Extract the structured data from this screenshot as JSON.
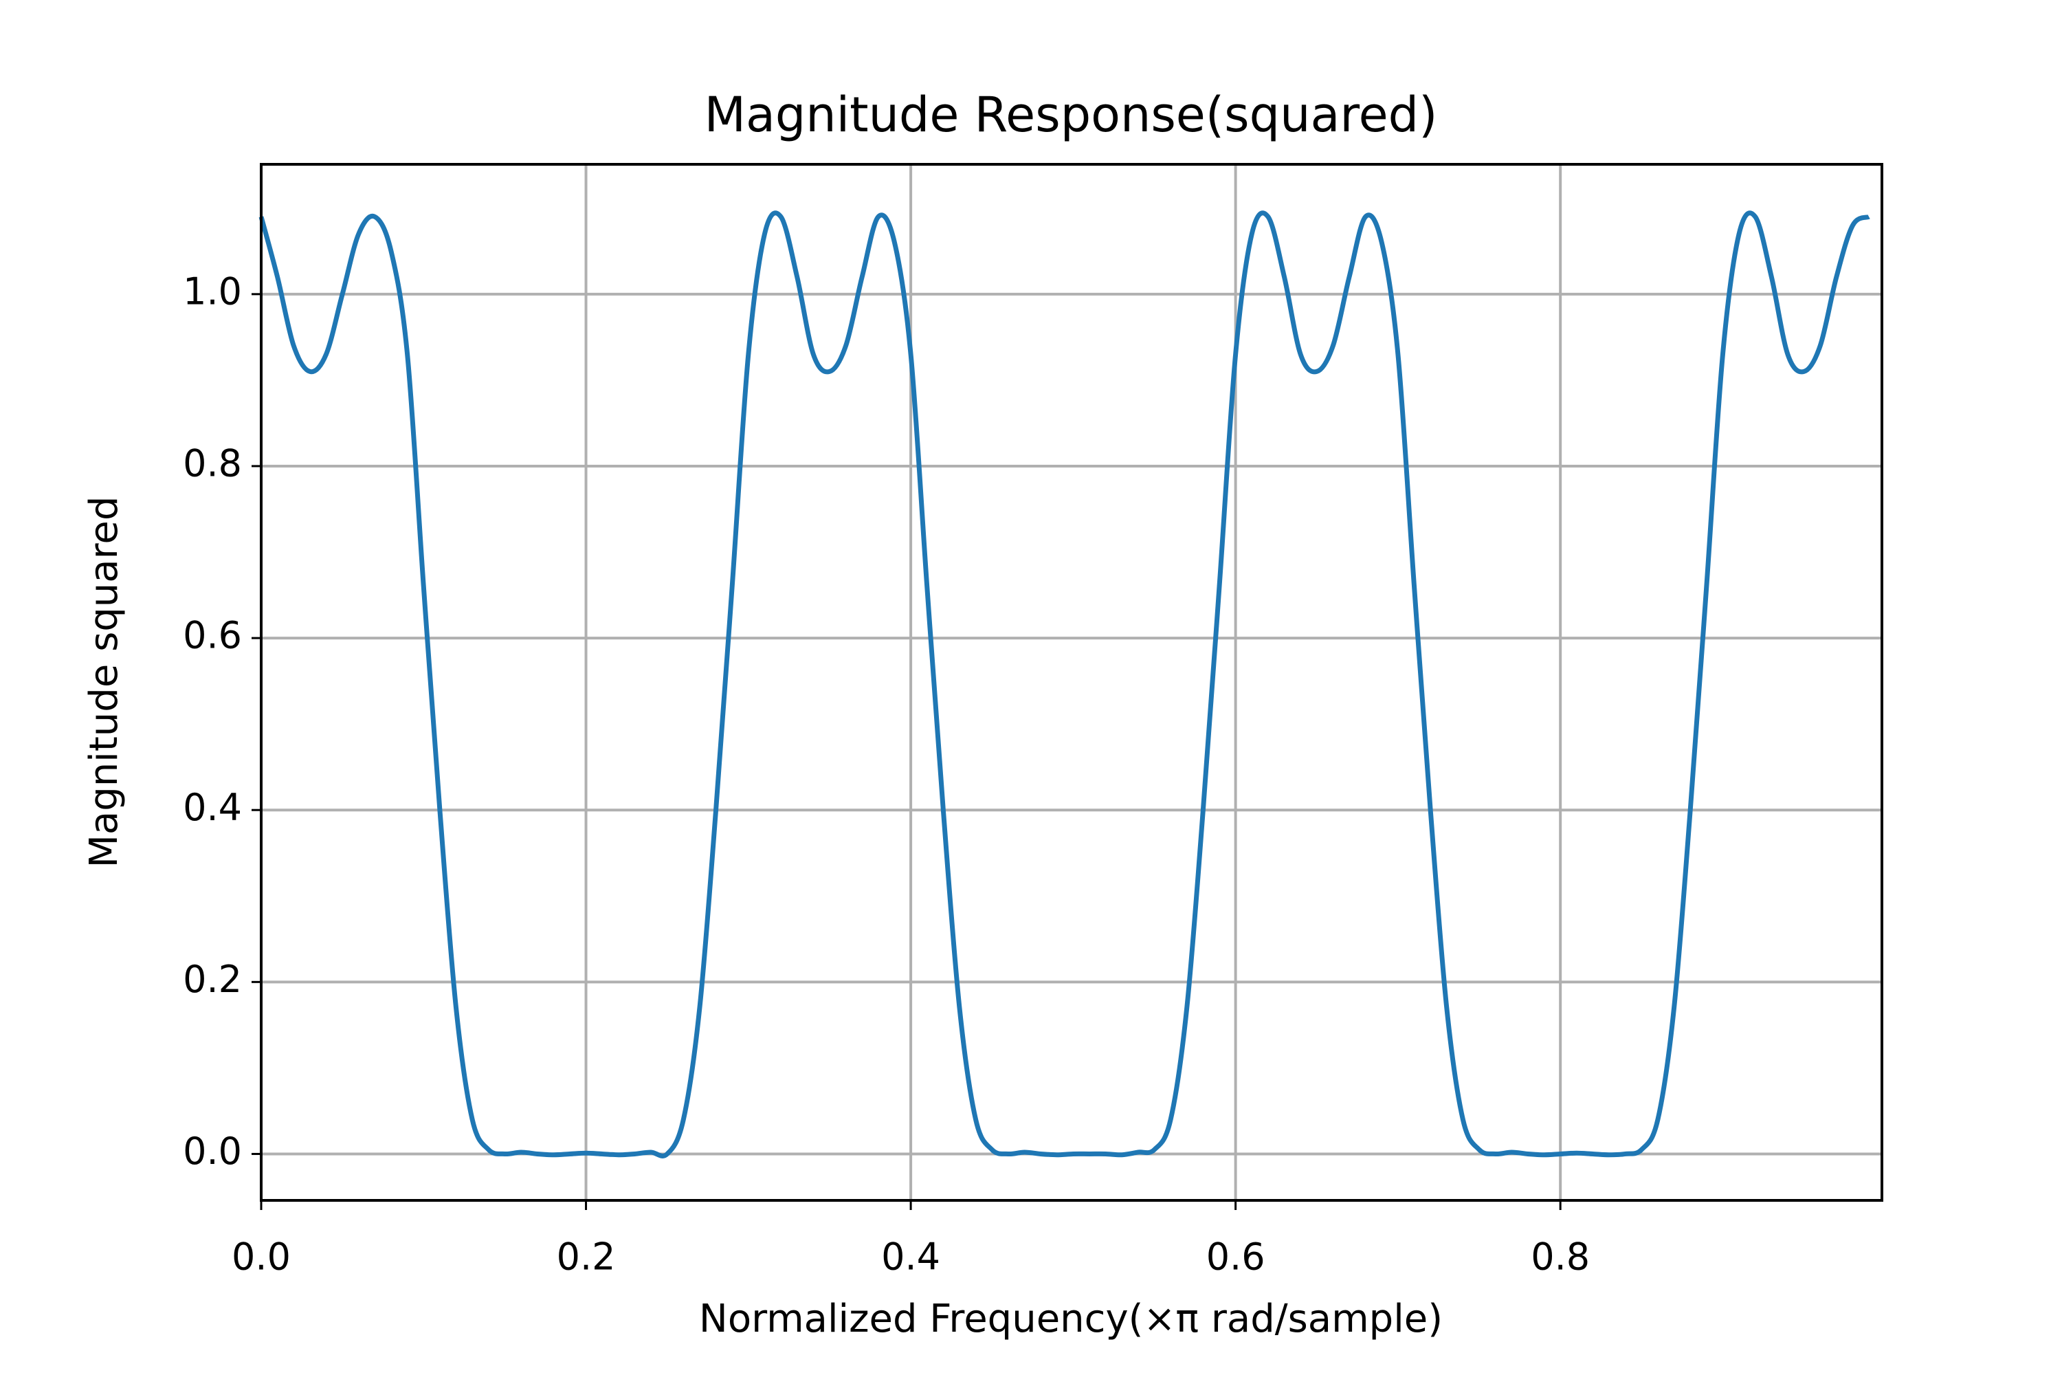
{
  "chart_data": {
    "type": "line",
    "title": "Magnitude Response(squared)",
    "xlabel": "Normalized Frequency(×π rad/sample)",
    "ylabel": "Magnitude squared",
    "x": [
      0,
      0.01,
      0.02,
      0.03,
      0.04,
      0.05,
      0.06,
      0.07,
      0.08,
      0.09,
      0.1,
      0.11,
      0.12,
      0.13,
      0.14,
      0.15,
      0.16,
      0.17,
      0.18,
      0.19,
      0.2,
      0.21,
      0.22,
      0.23,
      0.24,
      0.25,
      0.26,
      0.27,
      0.28,
      0.29,
      0.3,
      0.31,
      0.32,
      0.33,
      0.34,
      0.35,
      0.36,
      0.37,
      0.38,
      0.39,
      0.4,
      0.41,
      0.42,
      0.43,
      0.44,
      0.45,
      0.46,
      0.47,
      0.48,
      0.49,
      0.5,
      0.51,
      0.52,
      0.53,
      0.54,
      0.55,
      0.56,
      0.57,
      0.58,
      0.59,
      0.6,
      0.61,
      0.62,
      0.63,
      0.64,
      0.65,
      0.66,
      0.67,
      0.68,
      0.69,
      0.7,
      0.71,
      0.72,
      0.73,
      0.74,
      0.75,
      0.76,
      0.77,
      0.78,
      0.79,
      0.8,
      0.81,
      0.82,
      0.83,
      0.84,
      0.85,
      0.86,
      0.87,
      0.88,
      0.89,
      0.9,
      0.91,
      0.92,
      0.93,
      0.94,
      0.95,
      0.96,
      0.97,
      0.98,
      0.99
    ],
    "series": [
      {
        "color": "#1f77b4",
        "values": [
          1.09,
          1.02,
          0.94,
          0.91,
          0.93,
          1.0,
          1.07,
          1.09,
          1.05,
          0.93,
          0.66,
          0.4,
          0.17,
          0.04,
          0.005,
          0,
          0.002,
          0,
          -0.001,
          0,
          0.001,
          0,
          -0.001,
          0,
          0.002,
          0,
          0.04,
          0.17,
          0.4,
          0.66,
          0.93,
          1.07,
          1.09,
          1.02,
          0.93,
          0.91,
          0.94,
          1.02,
          1.09,
          1.06,
          0.93,
          0.66,
          0.4,
          0.17,
          0.04,
          0.005,
          0,
          0.002,
          0,
          -0.001,
          0,
          0,
          0,
          -0.001,
          0.002,
          0.005,
          0.04,
          0.17,
          0.4,
          0.66,
          0.93,
          1.07,
          1.09,
          1.02,
          0.93,
          0.91,
          0.94,
          1.02,
          1.09,
          1.06,
          0.93,
          0.66,
          0.4,
          0.17,
          0.04,
          0.005,
          0,
          0.002,
          0,
          -0.001,
          0,
          0.001,
          0,
          -0.001,
          0,
          0.005,
          0.04,
          0.17,
          0.4,
          0.66,
          0.93,
          1.07,
          1.09,
          1.02,
          0.93,
          0.91,
          0.94,
          1.02,
          1.08,
          1.09
        ]
      }
    ],
    "xlim": [
      0,
      0.998
    ],
    "ylim": [
      -0.054,
      1.151
    ],
    "xticks": [
      {
        "value": 0,
        "label": "0.0"
      },
      0.2,
      0.4,
      0.6,
      0.8
    ],
    "yticks": [
      {
        "value": 0,
        "label": "0.0"
      },
      0.2,
      0.4,
      0.6,
      0.8,
      {
        "value": 1,
        "label": "1.0"
      }
    ],
    "grid": true
  }
}
